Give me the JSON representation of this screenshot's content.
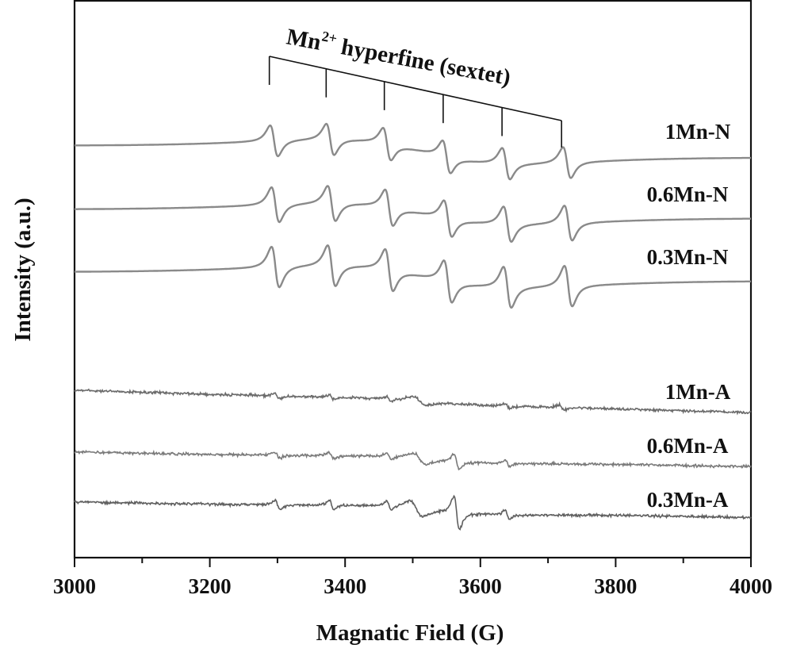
{
  "chart_data": {
    "type": "line",
    "title": "",
    "xlabel": "Magnatic Field (G)",
    "ylabel": "Intensity (a.u.)",
    "xlim": [
      3000,
      4000
    ],
    "x_ticks_major": [
      3000,
      3200,
      3400,
      3600,
      3800,
      4000
    ],
    "x_ticks_major_labels": [
      "3000",
      "3200",
      "3400",
      "3600",
      "3800",
      "4000"
    ],
    "x_ticks_minor": [
      3100,
      3300,
      3500,
      3700,
      3900
    ],
    "y_ticks": "none",
    "grid": false,
    "legend": "none",
    "annotation": {
      "text_main": "Mn",
      "text_sup": "2+",
      "text_rest": " hyperfine (sextet)",
      "tick_positions": [
        3288,
        3372,
        3458,
        3545,
        3632,
        3720
      ]
    },
    "series": [
      {
        "name": "1Mn-N",
        "color": "#8a8a8a",
        "type": "esr_hyperfine",
        "line_centers": [
          3295,
          3378,
          3462,
          3550,
          3638,
          3728
        ],
        "amplitude": 0.35,
        "baseline": [
          1.0,
          1.0
        ],
        "broad": 0.65
      },
      {
        "name": "0.6Mn-N",
        "color": "#8a8a8a",
        "type": "esr_hyperfine",
        "line_centers": [
          3297,
          3380,
          3465,
          3552,
          3640,
          3730
        ],
        "amplitude": 0.45,
        "baseline": [
          1.0,
          1.0
        ],
        "broad": 0.5
      },
      {
        "name": "0.3Mn-N",
        "color": "#8a8a8a",
        "type": "esr_hyperfine",
        "line_centers": [
          3297,
          3380,
          3465,
          3552,
          3640,
          3730
        ],
        "amplitude": 0.6,
        "baseline": [
          1.0,
          1.0
        ],
        "broad": 0.45
      },
      {
        "name": "1Mn-A",
        "color": "#6a6a6a",
        "type": "noisy_weak",
        "line_centers": [
          3300,
          3380,
          3465,
          3510,
          3640,
          3720
        ],
        "amplitude": 0.12,
        "baseline": [
          1.0,
          1.0
        ]
      },
      {
        "name": "0.6Mn-A",
        "color": "#7a7a7a",
        "type": "noisy_weak",
        "line_centers": [
          3300,
          3380,
          3465,
          3510,
          3565,
          3640
        ],
        "amplitude": 0.15,
        "baseline": [
          1.0,
          1.0
        ]
      },
      {
        "name": "0.3Mn-A",
        "color": "#5f5f5f",
        "type": "noisy_weak",
        "line_centers": [
          3300,
          3380,
          3465,
          3505,
          3565,
          3640
        ],
        "amplitude": 0.2,
        "baseline": [
          1.0,
          1.0
        ]
      }
    ]
  }
}
